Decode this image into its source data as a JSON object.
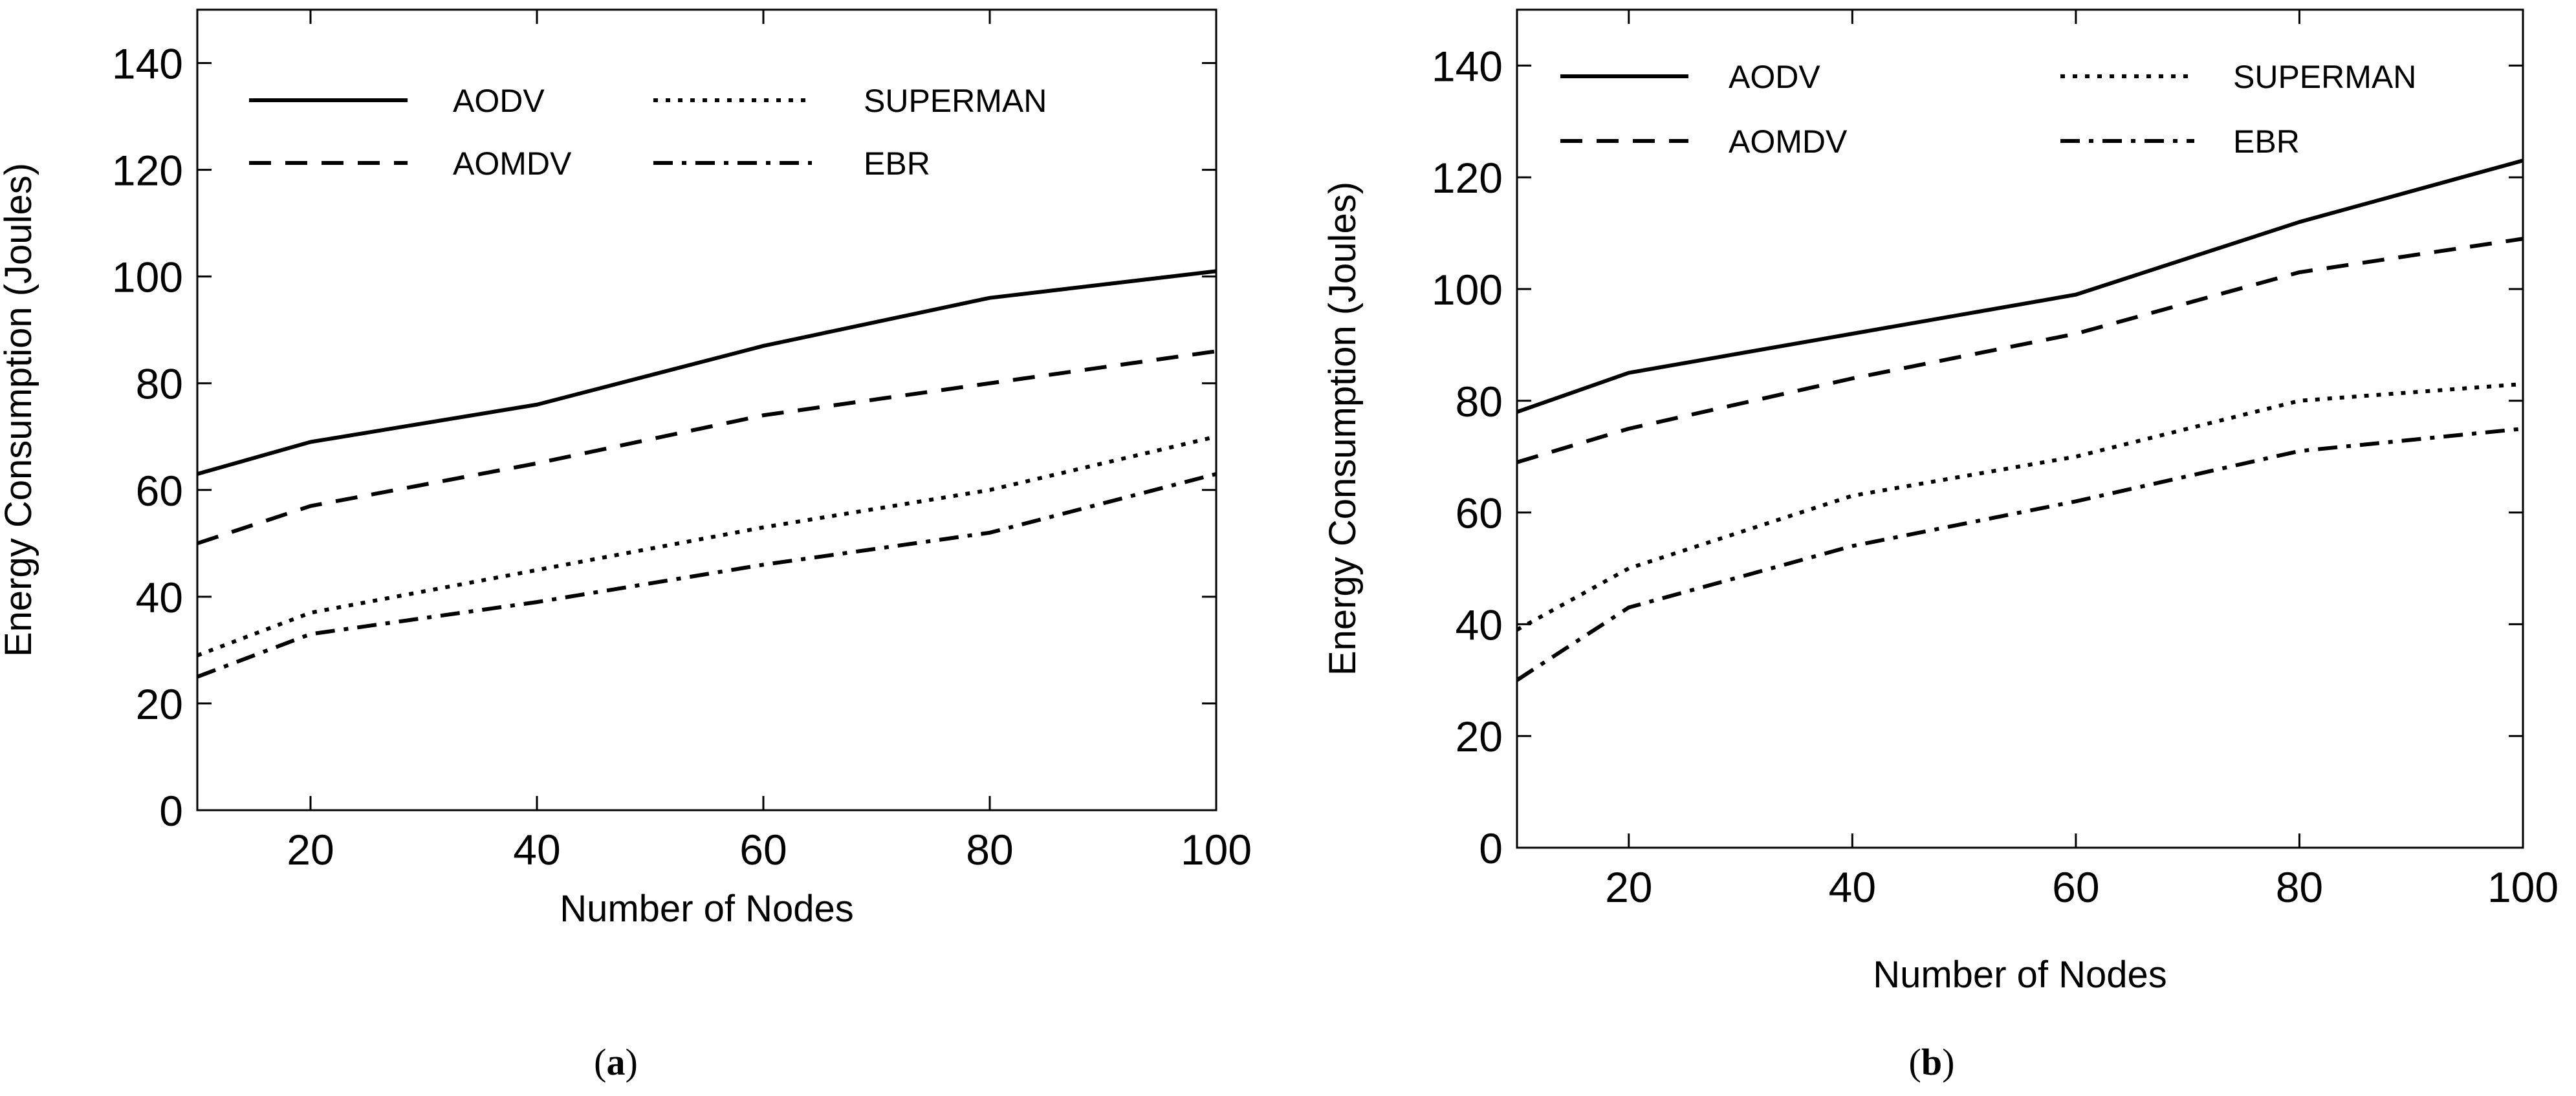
{
  "chart_data": [
    {
      "type": "line",
      "panel_label": "a",
      "xlabel": "Number of Nodes",
      "ylabel": "Energy Consumption (Joules)",
      "xlim": [
        10,
        100
      ],
      "ylim": [
        0,
        150
      ],
      "x_ticks": [
        20,
        40,
        60,
        80,
        100
      ],
      "y_ticks": [
        0,
        20,
        40,
        60,
        80,
        100,
        120,
        140
      ],
      "legend_position": "top",
      "x": [
        10,
        20,
        40,
        60,
        80,
        100
      ],
      "series": [
        {
          "name": "AODV",
          "style": "solid",
          "values": [
            63,
            69,
            76,
            87,
            96,
            101
          ]
        },
        {
          "name": "AOMDV",
          "style": "dashed",
          "values": [
            50,
            57,
            65,
            74,
            80,
            86
          ]
        },
        {
          "name": "SUPERMAN",
          "style": "dotted",
          "values": [
            29,
            37,
            45,
            53,
            60,
            70
          ]
        },
        {
          "name": "EBR",
          "style": "dashdot",
          "values": [
            25,
            33,
            39,
            46,
            52,
            63
          ]
        }
      ]
    },
    {
      "type": "line",
      "panel_label": "b",
      "xlabel": "Number of Nodes",
      "ylabel": "Energy Consumption (Joules)",
      "xlim": [
        10,
        100
      ],
      "ylim": [
        0,
        150
      ],
      "x_ticks": [
        20,
        40,
        60,
        80,
        100
      ],
      "y_ticks": [
        0,
        20,
        40,
        60,
        80,
        100,
        120,
        140
      ],
      "legend_position": "top",
      "x": [
        10,
        20,
        40,
        60,
        80,
        100
      ],
      "series": [
        {
          "name": "AODV",
          "style": "solid",
          "values": [
            78,
            85,
            92,
            99,
            112,
            123
          ]
        },
        {
          "name": "AOMDV",
          "style": "dashed",
          "values": [
            69,
            75,
            84,
            92,
            103,
            109
          ]
        },
        {
          "name": "SUPERMAN",
          "style": "dotted",
          "values": [
            39,
            50,
            63,
            70,
            80,
            83
          ]
        },
        {
          "name": "EBR",
          "style": "dashdot",
          "values": [
            30,
            43,
            54,
            62,
            71,
            75
          ]
        }
      ]
    }
  ]
}
